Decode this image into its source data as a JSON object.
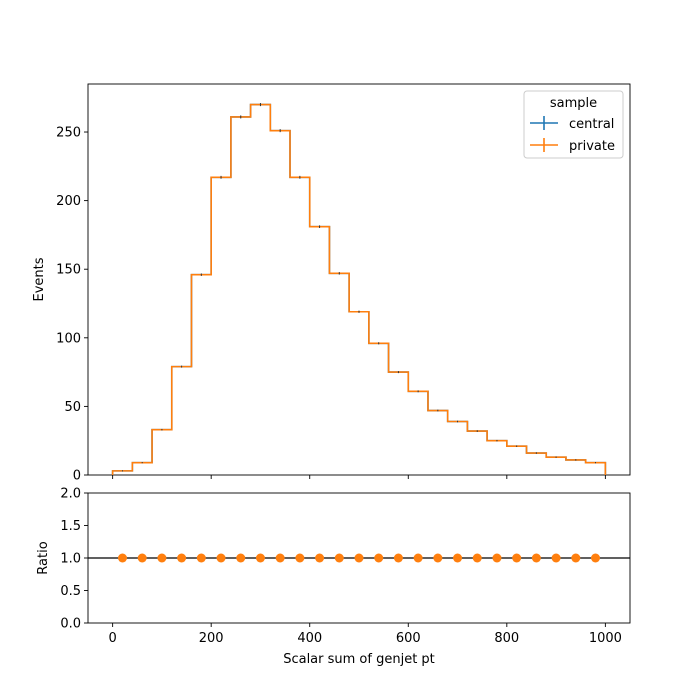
{
  "chart_data": [
    {
      "type": "step",
      "title": "",
      "xlabel": "",
      "ylabel": "Events",
      "xlim": [
        -50,
        1050
      ],
      "ylim": [
        0,
        285
      ],
      "xticks": [
        0,
        200,
        400,
        600,
        800,
        1000
      ],
      "xtick_labels_shown": false,
      "yticks": [
        0,
        50,
        100,
        150,
        200,
        250
      ],
      "ytick_labels": [
        "0",
        "50",
        "100",
        "150",
        "200",
        "250"
      ],
      "bin_edges": [
        0,
        40,
        80,
        120,
        160,
        200,
        240,
        280,
        320,
        360,
        400,
        440,
        480,
        520,
        560,
        600,
        640,
        680,
        720,
        760,
        800,
        840,
        880,
        920,
        960,
        1000
      ],
      "series": [
        {
          "name": "central",
          "color": "#1f77b4",
          "values": [
            3,
            9,
            33,
            79,
            146,
            217,
            261,
            270,
            251,
            217,
            181,
            147,
            119,
            96,
            75,
            61,
            47,
            39,
            32,
            25,
            21,
            16,
            13,
            11,
            9
          ]
        },
        {
          "name": "private",
          "color": "#ff7f0e",
          "values": [
            3,
            9,
            33,
            79,
            146,
            217,
            261,
            270,
            251,
            217,
            181,
            147,
            119,
            96,
            75,
            61,
            47,
            39,
            32,
            25,
            21,
            16,
            13,
            11,
            9
          ]
        }
      ],
      "legend": {
        "title": "sample",
        "position": "top-right",
        "entries": [
          "central",
          "private"
        ]
      }
    },
    {
      "type": "scatter",
      "xlabel": "Scalar sum of genjet pt",
      "ylabel": "Ratio",
      "xlim": [
        -50,
        1050
      ],
      "ylim": [
        0,
        2
      ],
      "xticks": [
        0,
        200,
        400,
        600,
        800,
        1000
      ],
      "xtick_labels": [
        "0",
        "200",
        "400",
        "600",
        "800",
        "1000"
      ],
      "yticks": [
        0.0,
        0.5,
        1.0,
        1.5,
        2.0
      ],
      "ytick_labels": [
        "0.0",
        "0.5",
        "1.0",
        "1.5",
        "2.0"
      ],
      "reference_line": 1.0,
      "reference_line_color": "#000000",
      "point_color": "#ff7f0e",
      "x": [
        20,
        60,
        100,
        140,
        180,
        220,
        260,
        300,
        340,
        380,
        420,
        460,
        500,
        540,
        580,
        620,
        660,
        700,
        740,
        780,
        820,
        860,
        900,
        940,
        980
      ],
      "y": [
        1,
        1,
        1,
        1,
        1,
        1,
        1,
        1,
        1,
        1,
        1,
        1,
        1,
        1,
        1,
        1,
        1,
        1,
        1,
        1,
        1,
        1,
        1,
        1,
        1
      ]
    }
  ]
}
